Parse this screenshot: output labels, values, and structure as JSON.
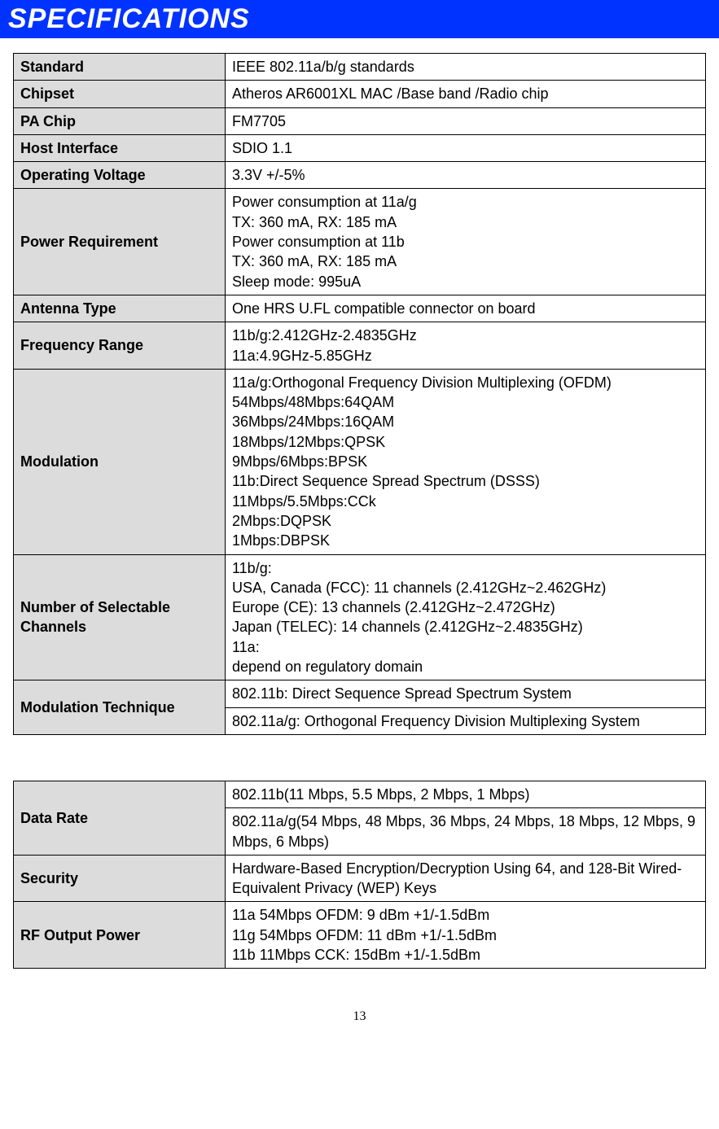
{
  "header": {
    "title": "SPECIFICATIONS"
  },
  "table1": {
    "rows": [
      {
        "label": "Standard",
        "value": "IEEE 802.11a/b/g standards"
      },
      {
        "label": "Chipset",
        "value": "Atheros AR6001XL  MAC /Base band /Radio chip"
      },
      {
        "label": "PA Chip",
        "value": "FM7705"
      },
      {
        "label": "Host Interface",
        "value": "SDIO 1.1"
      },
      {
        "label": "Operating Voltage",
        "value": "3.3V +/-5%"
      },
      {
        "label": "Power Requirement",
        "value": "Power consumption at 11a/g\nTX: 360 mA, RX: 185 mA\nPower consumption at 11b\nTX: 360 mA, RX: 185 mA\nSleep mode: 995uA"
      },
      {
        "label": "Antenna Type",
        "value": "One HRS U.FL compatible connector on board"
      },
      {
        "label": "Frequency Range",
        "value": "11b/g:2.412GHz-2.4835GHz\n11a:4.9GHz-5.85GHz"
      },
      {
        "label": "Modulation",
        "value": "11a/g:Orthogonal Frequency Division Multiplexing (OFDM)\n54Mbps/48Mbps:64QAM\n36Mbps/24Mbps:16QAM\n18Mbps/12Mbps:QPSK\n9Mbps/6Mbps:BPSK\n11b:Direct Sequence Spread Spectrum (DSSS)\n11Mbps/5.5Mbps:CCk\n2Mbps:DQPSK\n1Mbps:DBPSK"
      },
      {
        "label": "Number of Selectable Channels",
        "value": "11b/g:\nUSA, Canada (FCC): 11 channels (2.412GHz~2.462GHz)\nEurope (CE): 13 channels (2.412GHz~2.472GHz)\nJapan (TELEC): 14 channels (2.412GHz~2.4835GHz)\n11a:\ndepend on regulatory domain"
      }
    ],
    "mod_tech": {
      "label": "Modulation Technique",
      "value1": "802.11b: Direct Sequence Spread Spectrum System",
      "value2": "802.11a/g: Orthogonal Frequency Division Multiplexing System"
    }
  },
  "table2": {
    "data_rate": {
      "label": "Data Rate",
      "value1": "802.11b(11 Mbps, 5.5 Mbps, 2 Mbps, 1 Mbps)",
      "value2": "802.11a/g(54 Mbps, 48 Mbps, 36 Mbps, 24 Mbps, 18 Mbps, 12 Mbps, 9 Mbps, 6 Mbps)"
    },
    "rows": [
      {
        "label": "Security",
        "value": "Hardware-Based Encryption/Decryption Using 64, and 128-Bit Wired-Equivalent Privacy (WEP) Keys"
      },
      {
        "label": "RF Output Power",
        "value": "11a 54Mbps OFDM: 9 dBm +1/-1.5dBm\n11g 54Mbps OFDM: 11 dBm +1/-1.5dBm\n11b 11Mbps CCK: 15dBm +1/-1.5dBm"
      }
    ]
  },
  "footer": {
    "page_number": "13"
  },
  "style": {
    "header_bg": "#0033ff",
    "header_fg": "#ffffff",
    "label_bg": "#dcdcdc",
    "border_color": "#000000",
    "body_bg": "#ffffff",
    "font_size_body": 18,
    "font_size_header": 34
  }
}
